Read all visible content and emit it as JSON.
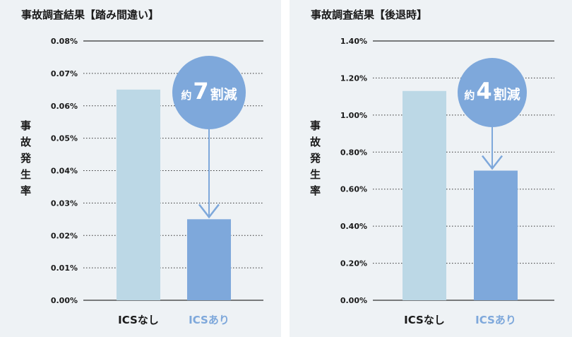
{
  "chart_data": [
    {
      "type": "bar",
      "title": "事故調査結果【踏み間違い】",
      "ylabel": "事故発生率",
      "categories": [
        "ICSなし",
        "ICSあり"
      ],
      "values": [
        0.065,
        0.025
      ],
      "ylim": [
        0,
        0.08
      ],
      "yticks": [
        "0.00%",
        "0.01%",
        "0.02%",
        "0.03%",
        "0.04%",
        "0.05%",
        "0.06%",
        "0.07%",
        "0.08%"
      ],
      "bar_colors": [
        "#bcd8e6",
        "#7ea8db"
      ],
      "category_colors": [
        "#1a1a1a",
        "#7ea8db"
      ],
      "grid": true,
      "annotation": {
        "prefix": "約",
        "number": "7",
        "suffix": "割減",
        "color": "#7ea8db"
      }
    },
    {
      "type": "bar",
      "title": "事故調査結果【後退時】",
      "ylabel": "事故発生率",
      "categories": [
        "ICSなし",
        "ICSあり"
      ],
      "values": [
        1.13,
        0.7
      ],
      "ylim": [
        0,
        1.4
      ],
      "yticks": [
        "0.00%",
        "0.20%",
        "0.40%",
        "0.60%",
        "0.80%",
        "1.00%",
        "1.20%",
        "1.40%"
      ],
      "bar_colors": [
        "#bcd8e6",
        "#7ea8db"
      ],
      "category_colors": [
        "#1a1a1a",
        "#7ea8db"
      ],
      "grid": true,
      "annotation": {
        "prefix": "約",
        "number": "4",
        "suffix": "割減",
        "color": "#7ea8db"
      }
    }
  ]
}
